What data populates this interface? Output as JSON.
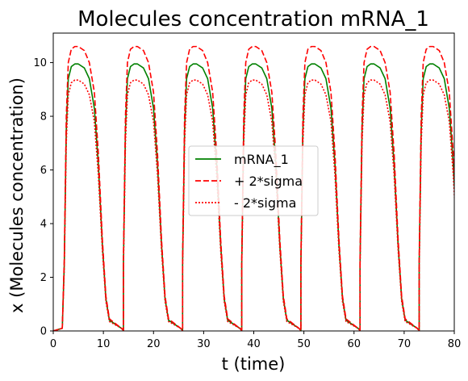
{
  "chart_data": {
    "type": "line",
    "title": "Molecules concentration mRNA_1",
    "xlabel": "t (time)",
    "ylabel": "x (Molecules concentration)",
    "xlim": [
      0,
      80
    ],
    "ylim": [
      0,
      11.1
    ],
    "xticks": [
      0,
      10,
      20,
      30,
      40,
      50,
      60,
      70,
      80
    ],
    "yticks": [
      0,
      2,
      4,
      6,
      8,
      10
    ],
    "grid": false,
    "legend_position": "center-right",
    "period": 11.8,
    "series": [
      {
        "name": "mRNA_1",
        "style": "solid",
        "color": "#008000",
        "x": [
          0,
          1.8,
          2.2,
          2.6,
          3.0,
          3.6,
          4.3,
          5.0,
          6.2,
          7.2,
          8.2,
          9.0,
          9.8,
          10.5,
          11.2,
          12.0,
          13.0,
          14.0
        ],
        "y": [
          0,
          0.1,
          2.5,
          7.5,
          9.4,
          9.85,
          9.95,
          9.95,
          9.8,
          9.4,
          8.3,
          6.2,
          3.2,
          1.2,
          0.4,
          0.1,
          0.03,
          0.02
        ],
        "peak_value": 9.9
      },
      {
        "name": "+ 2*sigma",
        "style": "dashed",
        "color": "#ff0000",
        "x": [
          0,
          1.8,
          2.2,
          2.6,
          3.0,
          3.6,
          4.3,
          5.0,
          6.2,
          7.2,
          8.2,
          9.0,
          9.8,
          10.5,
          11.2,
          12.0,
          13.0,
          14.0
        ],
        "y": [
          0,
          0.1,
          2.7,
          8.0,
          10.0,
          10.5,
          10.6,
          10.6,
          10.45,
          10.0,
          8.9,
          6.6,
          3.4,
          1.3,
          0.45,
          0.12,
          0.04,
          0.03
        ],
        "peak_value": 10.6
      },
      {
        "name": "- 2*sigma",
        "style": "dotted",
        "color": "#ff0000",
        "x": [
          0,
          1.8,
          2.2,
          2.6,
          3.0,
          3.6,
          4.3,
          5.0,
          6.2,
          7.2,
          8.2,
          9.0,
          9.8,
          10.5,
          11.2,
          12.0,
          13.0,
          14.0
        ],
        "y": [
          0,
          0.1,
          2.3,
          7.0,
          8.8,
          9.25,
          9.35,
          9.35,
          9.2,
          8.8,
          7.8,
          5.8,
          3.0,
          1.1,
          0.35,
          0.08,
          0.02,
          0.01
        ],
        "peak_value": 9.3
      }
    ]
  }
}
